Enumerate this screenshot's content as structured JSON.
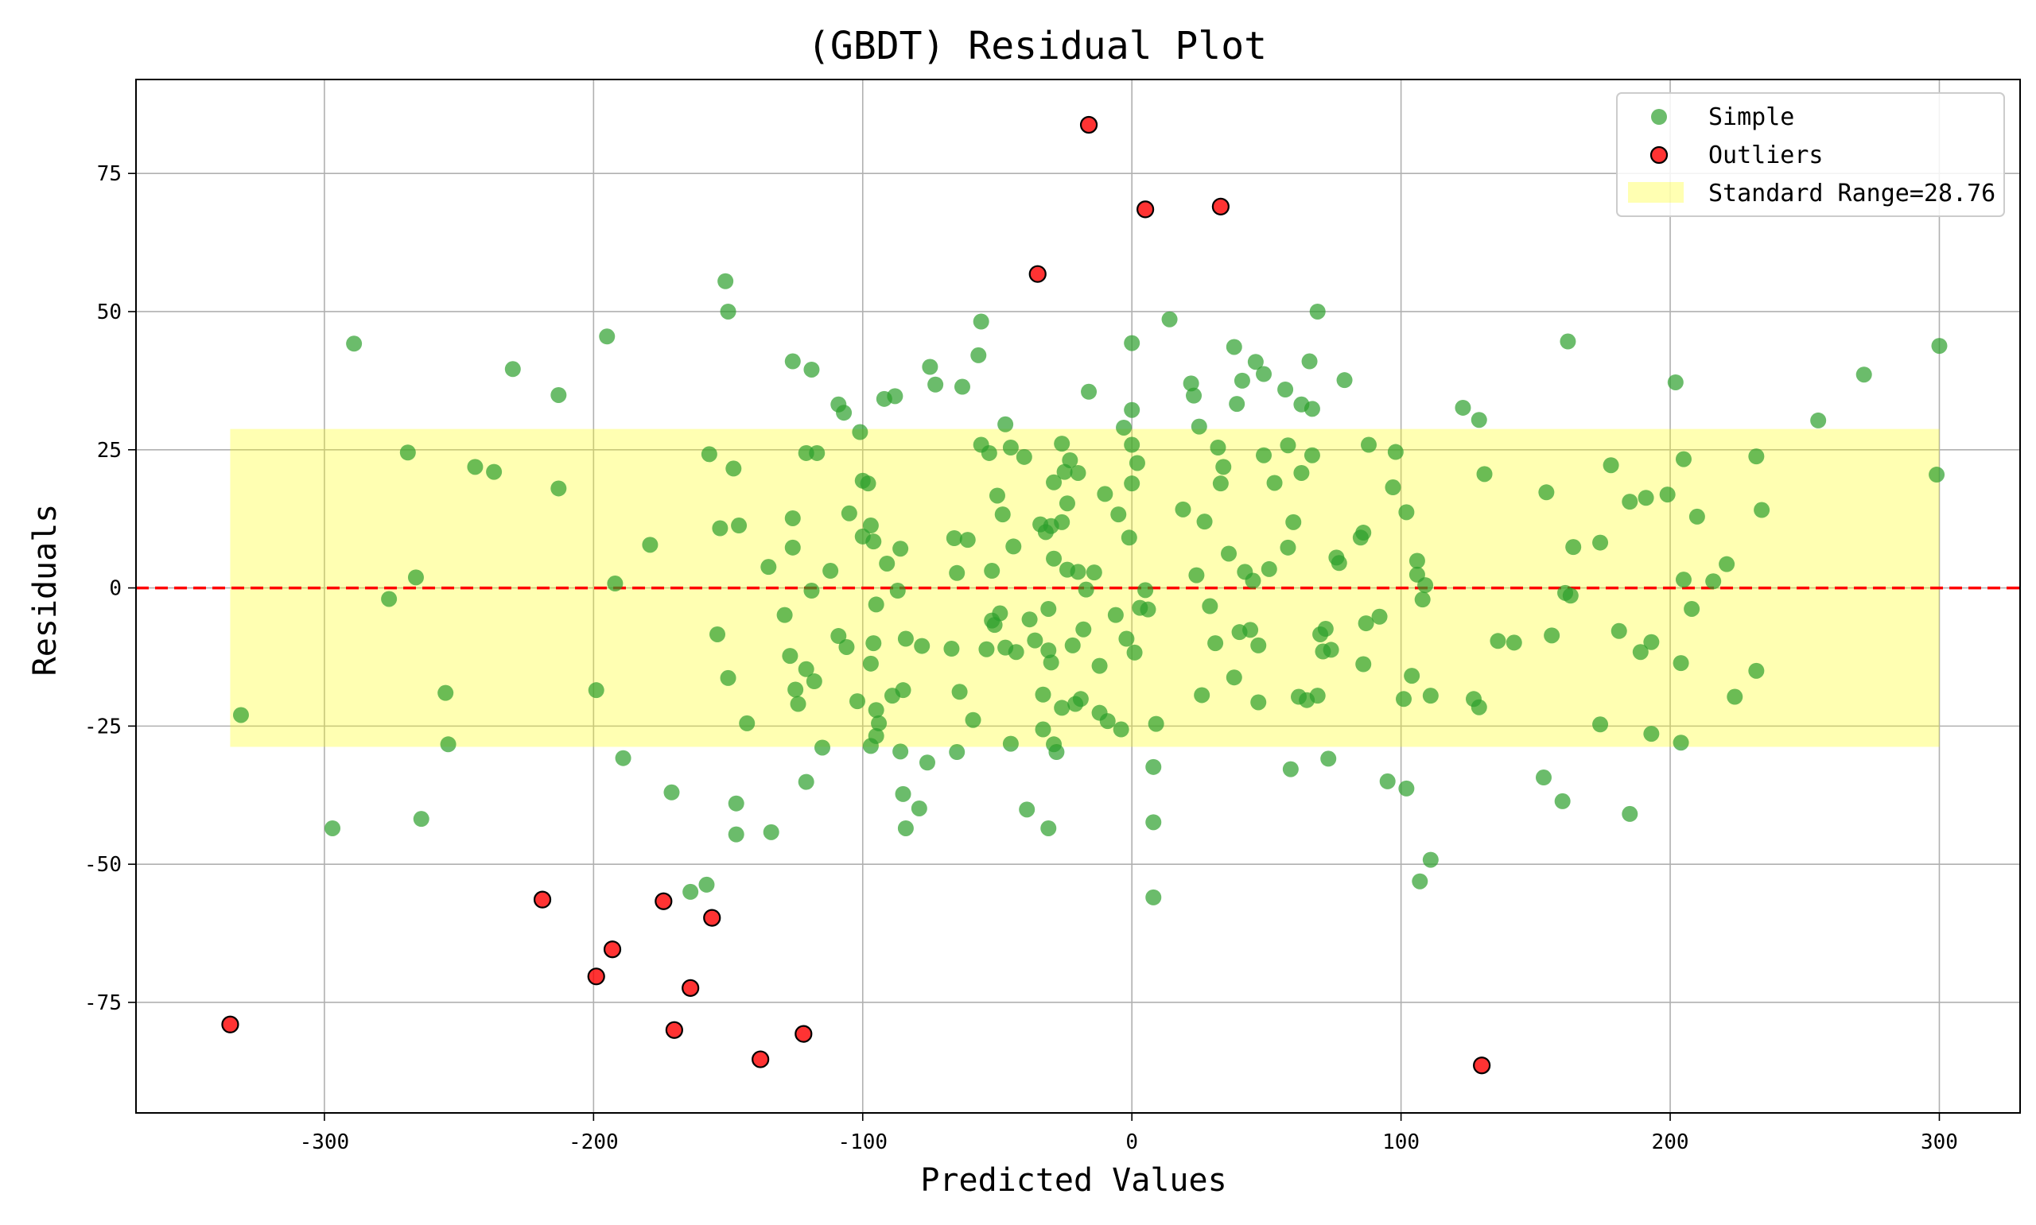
{
  "chart_data": {
    "type": "scatter",
    "title": "(GBDT) Residual Plot",
    "xlabel": "Predicted Values",
    "ylabel": "Residuals",
    "xlim": [
      -370,
      330
    ],
    "ylim": [
      -95,
      92
    ],
    "xticks": [
      -300,
      -200,
      -100,
      0,
      100,
      200,
      300
    ],
    "yticks": [
      -75,
      -50,
      -25,
      0,
      25,
      50,
      75
    ],
    "grid": true,
    "legend_position": "top-right",
    "zero_line": {
      "y": 0,
      "color": "#ff0000",
      "style": "dashed"
    },
    "band": {
      "label": "Standard Range=28.76",
      "value": 28.76,
      "x_range": [
        -335,
        300
      ],
      "color": "#ffff00"
    },
    "colors": {
      "simple": "#2ca02c",
      "outliers": "#ff0000",
      "band": "#ffff00"
    },
    "series": [
      {
        "name": "Simple",
        "points": [
          [
            -331,
            -23
          ],
          [
            -297,
            -43.5
          ],
          [
            -289,
            44.2
          ],
          [
            -276,
            -2
          ],
          [
            -269,
            24.5
          ],
          [
            -266,
            1.9
          ],
          [
            -264,
            -41.8
          ],
          [
            -255,
            -19
          ],
          [
            -254,
            -28.3
          ],
          [
            -244,
            21.9
          ],
          [
            -237,
            21
          ],
          [
            -230,
            39.6
          ],
          [
            -213,
            34.9
          ],
          [
            -213,
            18
          ],
          [
            -199,
            -18.5
          ],
          [
            -195,
            45.5
          ],
          [
            -192,
            0.8
          ],
          [
            -189,
            -30.8
          ],
          [
            -179,
            7.8
          ],
          [
            -171,
            -37
          ],
          [
            -164,
            -55
          ],
          [
            -158,
            -53.7
          ],
          [
            -157,
            24.2
          ],
          [
            -154,
            -8.4
          ],
          [
            -153,
            10.8
          ],
          [
            -151,
            55.5
          ],
          [
            -150,
            50
          ],
          [
            -150,
            -16.3
          ],
          [
            -148,
            21.6
          ],
          [
            -147,
            -39
          ],
          [
            -147,
            -44.6
          ],
          [
            -146,
            11.3
          ],
          [
            -143,
            -24.5
          ],
          [
            -135,
            3.8
          ],
          [
            -134,
            -44.2
          ],
          [
            -129,
            -4.9
          ],
          [
            -127,
            -12.3
          ],
          [
            -126,
            41
          ],
          [
            -126,
            7.3
          ],
          [
            -126,
            12.6
          ],
          [
            -125,
            -18.4
          ],
          [
            -124,
            -21
          ],
          [
            -121,
            -35.1
          ],
          [
            -121,
            24.4
          ],
          [
            -121,
            -14.7
          ],
          [
            -119,
            39.5
          ],
          [
            -119,
            -0.5
          ],
          [
            -118,
            -16.9
          ],
          [
            -117,
            24.4
          ],
          [
            -115,
            -28.9
          ],
          [
            -112,
            3.1
          ],
          [
            -109,
            33.2
          ],
          [
            -109,
            -8.7
          ],
          [
            -107,
            31.7
          ],
          [
            -106,
            -10.7
          ],
          [
            -105,
            13.5
          ],
          [
            -102,
            -20.5
          ],
          [
            -101,
            28.2
          ],
          [
            -100,
            19.4
          ],
          [
            -100,
            9.3
          ],
          [
            -98,
            18.9
          ],
          [
            -97,
            -28.6
          ],
          [
            -97,
            11.3
          ],
          [
            -97,
            -13.7
          ],
          [
            -96,
            8.4
          ],
          [
            -96,
            -10
          ],
          [
            -95,
            -26.8
          ],
          [
            -95,
            -3
          ],
          [
            -95,
            -22.1
          ],
          [
            -94,
            -24.5
          ],
          [
            -92,
            34.2
          ],
          [
            -91,
            4.4
          ],
          [
            -89,
            -19.5
          ],
          [
            -88,
            34.7
          ],
          [
            -87,
            -0.5
          ],
          [
            -86,
            7.1
          ],
          [
            -86,
            -29.6
          ],
          [
            -85,
            -37.3
          ],
          [
            -85,
            -18.5
          ],
          [
            -84,
            -9.2
          ],
          [
            -84,
            -43.5
          ],
          [
            -79,
            -39.9
          ],
          [
            -78,
            -10.5
          ],
          [
            -76,
            -31.6
          ],
          [
            -75,
            40
          ],
          [
            -73,
            36.8
          ],
          [
            -67,
            -11
          ],
          [
            -66,
            9
          ],
          [
            -65,
            2.7
          ],
          [
            -65,
            -29.7
          ],
          [
            -64,
            -18.8
          ],
          [
            -63,
            36.4
          ],
          [
            -61,
            8.7
          ],
          [
            -59,
            -23.9
          ],
          [
            -57,
            42.1
          ],
          [
            -56,
            48.2
          ],
          [
            -56,
            25.9
          ],
          [
            -54,
            -11.1
          ],
          [
            -53,
            24.4
          ],
          [
            -52,
            -5.9
          ],
          [
            -52,
            3.1
          ],
          [
            -51,
            -6.7
          ],
          [
            -50,
            16.7
          ],
          [
            -49,
            -4.6
          ],
          [
            -48,
            13.3
          ],
          [
            -47,
            29.6
          ],
          [
            -47,
            -10.8
          ],
          [
            -45,
            -28.2
          ],
          [
            -45,
            25.4
          ],
          [
            -44,
            7.5
          ],
          [
            -43,
            -11.6
          ],
          [
            -40,
            23.7
          ],
          [
            -39,
            -40.1
          ],
          [
            -38,
            -5.7
          ],
          [
            -36,
            -9.5
          ],
          [
            -34,
            11.5
          ],
          [
            -33,
            -19.3
          ],
          [
            -33,
            -25.6
          ],
          [
            -32,
            10.1
          ],
          [
            -31,
            -43.5
          ],
          [
            -31,
            -3.8
          ],
          [
            -31,
            -11.3
          ],
          [
            -30,
            -13.5
          ],
          [
            -30,
            11.2
          ],
          [
            -29,
            -28.3
          ],
          [
            -29,
            5.3
          ],
          [
            -29,
            19.1
          ],
          [
            -28,
            -29.7
          ],
          [
            -26,
            -21.7
          ],
          [
            -26,
            11.9
          ],
          [
            -26,
            26.1
          ],
          [
            -25,
            21
          ],
          [
            -24,
            3.3
          ],
          [
            -24,
            15.3
          ],
          [
            -23,
            23.1
          ],
          [
            -22,
            -10.4
          ],
          [
            -21,
            -21
          ],
          [
            -20,
            2.9
          ],
          [
            -20,
            20.8
          ],
          [
            -19,
            -20.1
          ],
          [
            -18,
            -7.5
          ],
          [
            -17,
            -0.3
          ],
          [
            -16,
            35.5
          ],
          [
            -14,
            2.8
          ],
          [
            -12,
            -22.6
          ],
          [
            -12,
            -14.1
          ],
          [
            -10,
            17
          ],
          [
            -9,
            -24.1
          ],
          [
            -6,
            -4.9
          ],
          [
            -5,
            13.3
          ],
          [
            -4,
            -25.6
          ],
          [
            -3,
            29
          ],
          [
            -2,
            -9.2
          ],
          [
            -1,
            9.1
          ],
          [
            0,
            44.3
          ],
          [
            0,
            32.2
          ],
          [
            0,
            25.9
          ],
          [
            0,
            18.9
          ],
          [
            1,
            -11.7
          ],
          [
            2,
            22.6
          ],
          [
            3,
            -3.6
          ],
          [
            5,
            -0.4
          ],
          [
            6,
            -3.9
          ],
          [
            8,
            -32.4
          ],
          [
            8,
            -42.4
          ],
          [
            8,
            -56
          ],
          [
            9,
            -24.6
          ],
          [
            14,
            48.6
          ],
          [
            19,
            14.2
          ],
          [
            22,
            37
          ],
          [
            23,
            34.8
          ],
          [
            24,
            2.3
          ],
          [
            25,
            29.2
          ],
          [
            26,
            -19.4
          ],
          [
            27,
            12
          ],
          [
            29,
            -3.3
          ],
          [
            31,
            -10
          ],
          [
            32,
            25.4
          ],
          [
            33,
            18.9
          ],
          [
            34,
            21.9
          ],
          [
            36,
            6.2
          ],
          [
            38,
            43.6
          ],
          [
            38,
            -16.2
          ],
          [
            39,
            33.3
          ],
          [
            40,
            -8
          ],
          [
            41,
            37.5
          ],
          [
            42,
            2.9
          ],
          [
            44,
            -7.6
          ],
          [
            45,
            1.3
          ],
          [
            46,
            40.9
          ],
          [
            47,
            -10.4
          ],
          [
            47,
            -20.7
          ],
          [
            49,
            38.7
          ],
          [
            49,
            24
          ],
          [
            51,
            3.4
          ],
          [
            53,
            19
          ],
          [
            57,
            35.9
          ],
          [
            58,
            7.3
          ],
          [
            58,
            25.8
          ],
          [
            59,
            -32.8
          ],
          [
            60,
            11.9
          ],
          [
            62,
            -19.7
          ],
          [
            63,
            20.8
          ],
          [
            63,
            33.2
          ],
          [
            65,
            -20.3
          ],
          [
            66,
            41
          ],
          [
            67,
            32.4
          ],
          [
            67,
            24
          ],
          [
            69,
            50
          ],
          [
            69,
            -19.5
          ],
          [
            70,
            -8.4
          ],
          [
            71,
            -11.5
          ],
          [
            72,
            -7.4
          ],
          [
            73,
            -30.9
          ],
          [
            74,
            -11.2
          ],
          [
            76,
            5.5
          ],
          [
            77,
            4.5
          ],
          [
            79,
            37.6
          ],
          [
            85,
            9.1
          ],
          [
            86,
            -13.8
          ],
          [
            86,
            10
          ],
          [
            87,
            -6.4
          ],
          [
            88,
            25.9
          ],
          [
            92,
            -5.2
          ],
          [
            95,
            -35
          ],
          [
            97,
            18.2
          ],
          [
            98,
            24.6
          ],
          [
            101,
            -20.1
          ],
          [
            102,
            -36.3
          ],
          [
            102,
            13.7
          ],
          [
            104,
            -15.9
          ],
          [
            106,
            4.9
          ],
          [
            106,
            2.4
          ],
          [
            107,
            -53.1
          ],
          [
            108,
            -2.1
          ],
          [
            109,
            0.5
          ],
          [
            111,
            -19.5
          ],
          [
            111,
            -49.2
          ],
          [
            123,
            32.6
          ],
          [
            127,
            -20.1
          ],
          [
            129,
            30.4
          ],
          [
            129,
            -21.6
          ],
          [
            131,
            20.6
          ],
          [
            136,
            -9.6
          ],
          [
            142,
            -9.9
          ],
          [
            153,
            -34.3
          ],
          [
            154,
            17.3
          ],
          [
            156,
            -8.6
          ],
          [
            160,
            -38.6
          ],
          [
            161,
            -0.9
          ],
          [
            162,
            44.6
          ],
          [
            163,
            -1.4
          ],
          [
            164,
            7.4
          ],
          [
            174,
            8.2
          ],
          [
            174,
            -24.7
          ],
          [
            178,
            22.2
          ],
          [
            181,
            -7.8
          ],
          [
            185,
            -40.9
          ],
          [
            185,
            15.6
          ],
          [
            189,
            -11.6
          ],
          [
            191,
            16.3
          ],
          [
            193,
            -26.4
          ],
          [
            193,
            -9.8
          ],
          [
            199,
            16.9
          ],
          [
            202,
            37.2
          ],
          [
            204,
            -13.6
          ],
          [
            204,
            -28
          ],
          [
            205,
            23.3
          ],
          [
            205,
            1.5
          ],
          [
            208,
            -3.8
          ],
          [
            210,
            12.9
          ],
          [
            216,
            1.2
          ],
          [
            221,
            4.3
          ],
          [
            224,
            -19.7
          ],
          [
            232,
            -15
          ],
          [
            232,
            23.8
          ],
          [
            234,
            14.1
          ],
          [
            255,
            30.3
          ],
          [
            272,
            38.6
          ],
          [
            299,
            20.5
          ],
          [
            300,
            43.8
          ]
        ]
      },
      {
        "name": "Outliers",
        "points": [
          [
            -335,
            -79
          ],
          [
            -219,
            -56.4
          ],
          [
            -199,
            -70.3
          ],
          [
            -193,
            -65.4
          ],
          [
            -174,
            -56.7
          ],
          [
            -170,
            -80
          ],
          [
            -164,
            -72.4
          ],
          [
            -156,
            -59.7
          ],
          [
            -138,
            -85.3
          ],
          [
            -122,
            -80.7
          ],
          [
            -35,
            56.8
          ],
          [
            -16,
            83.8
          ],
          [
            5,
            68.5
          ],
          [
            33,
            69
          ],
          [
            130,
            -86.4
          ]
        ]
      }
    ]
  }
}
